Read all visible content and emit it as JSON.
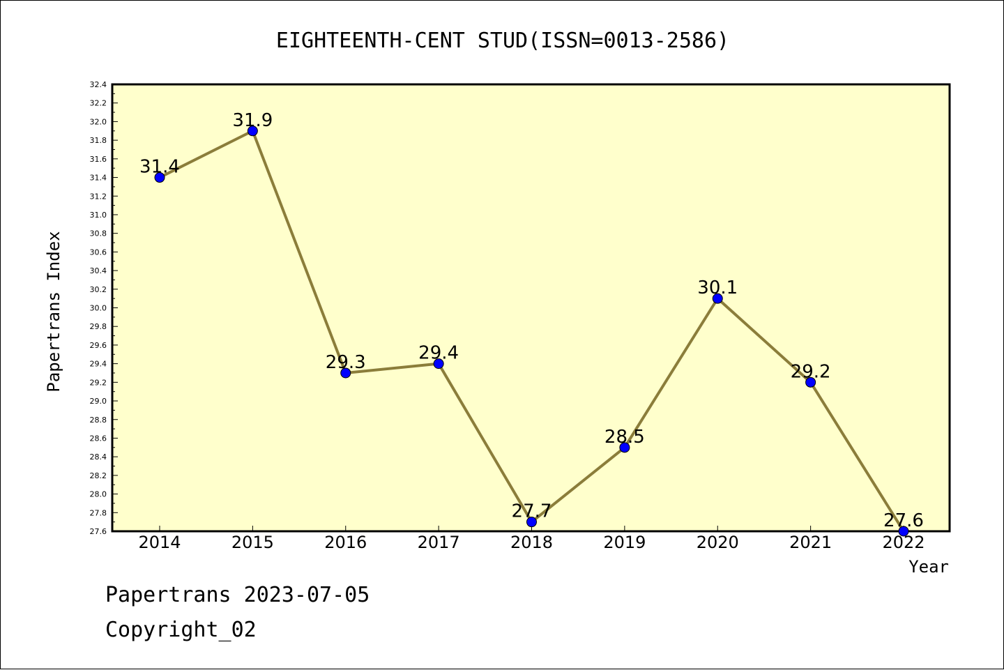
{
  "chart_data": {
    "type": "line",
    "title": "EIGHTEENTH-CENT STUD(ISSN=0013-2586)",
    "xlabel": "Year",
    "ylabel": "Papertrans Index",
    "categories": [
      "2014",
      "2015",
      "2016",
      "2017",
      "2018",
      "2019",
      "2020",
      "2021",
      "2022"
    ],
    "series": [
      {
        "values": [
          31.4,
          31.9,
          29.3,
          29.4,
          27.7,
          28.5,
          30.1,
          29.2,
          27.6
        ],
        "data_labels": [
          "31.4",
          "31.9",
          "29.3",
          "29.4",
          "27.7",
          "28.5",
          "30.1",
          "29.2",
          "27.6"
        ]
      }
    ],
    "ylim": [
      27.6,
      32.4
    ],
    "yticks": [
      "27.6",
      "27.8",
      "28.0",
      "28.2",
      "28.4",
      "28.6",
      "28.8",
      "29.0",
      "29.2",
      "29.4",
      "29.6",
      "29.8",
      "30.0",
      "30.2",
      "30.4",
      "30.6",
      "30.8",
      "31.0",
      "31.2",
      "31.4",
      "31.6",
      "31.8",
      "32.0",
      "32.2",
      "32.4"
    ],
    "grid": false,
    "colors": {
      "plot_background": "#ffffcc",
      "line": "#8b7d3a",
      "marker": "#0000ff"
    }
  },
  "footer": {
    "line1": "Papertrans 2023-07-05",
    "line2": "Copyright_02"
  }
}
